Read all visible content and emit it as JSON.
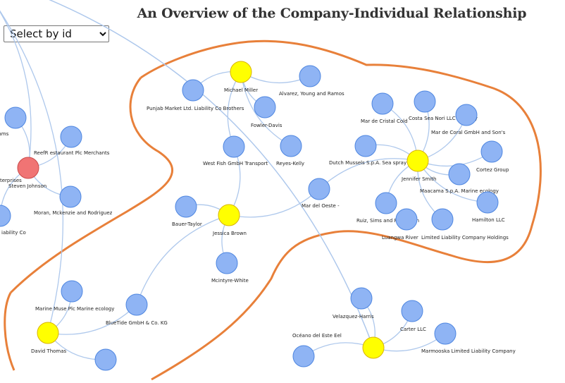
{
  "title": "An Overview of the Company-Individual Relationship",
  "select": {
    "label": "Select by id",
    "options": [
      "Select by id"
    ]
  },
  "colors": {
    "company": "#8fb4f4",
    "company_stroke": "#4e86e0",
    "person": "#ffff00",
    "person_stroke": "#d9b300",
    "highlight": "#f07474",
    "link": "#aec8ec",
    "hull": "#e8803a"
  },
  "nodes": [
    {
      "id": "n1",
      "kind": "company",
      "label": "len-Williams"
    },
    {
      "id": "n2",
      "kind": "company",
      "label": "ReefR estaurant Plc Merchants"
    },
    {
      "id": "n3",
      "kind": "highlight",
      "label": "Steven Johnson"
    },
    {
      "id": "n3b",
      "kind": "label",
      "label": "terprises"
    },
    {
      "id": "n4",
      "kind": "company",
      "label": "Moran, Mckenzie and Rodriguez"
    },
    {
      "id": "n5",
      "kind": "company",
      "label": "iability Co"
    },
    {
      "id": "n6",
      "kind": "person",
      "label": "Michael Miller"
    },
    {
      "id": "n7",
      "kind": "company",
      "label": "Punjab  Market Ltd. Liability Co Brothers"
    },
    {
      "id": "n8",
      "kind": "company",
      "label": "Alvarez, Young and Ramos"
    },
    {
      "id": "n9",
      "kind": "company",
      "label": "Fowler-Davis"
    },
    {
      "id": "n10",
      "kind": "company",
      "label": "West Fish  GmbH Transport"
    },
    {
      "id": "n11",
      "kind": "company",
      "label": "Reyes-Kelly"
    },
    {
      "id": "n12",
      "kind": "company",
      "label": "Mar del Oeste -"
    },
    {
      "id": "n13",
      "kind": "company",
      "label": "Bauer-Taylor"
    },
    {
      "id": "n14",
      "kind": "person",
      "label": "Jessica Brown"
    },
    {
      "id": "n15",
      "kind": "company",
      "label": "Mcintyre-White"
    },
    {
      "id": "n16",
      "kind": "company",
      "label": "Mar de Cristal Cold"
    },
    {
      "id": "n17",
      "kind": "company",
      "label": "Costa Sea  Nori LLC Delivery"
    },
    {
      "id": "n18",
      "kind": "company",
      "label": "Mar de Coral GmbH and Son's"
    },
    {
      "id": "n19",
      "kind": "company",
      "label": "Dutch Mussels S.p.A. Sea spray"
    },
    {
      "id": "n20",
      "kind": "person",
      "label": "Jennifer Smith"
    },
    {
      "id": "n21",
      "kind": "company",
      "label": "Cortez Group"
    },
    {
      "id": "n22",
      "kind": "company",
      "label": "Maacama  S.p.A. Marine ecology"
    },
    {
      "id": "n23",
      "kind": "company",
      "label": "Hamilton LLC"
    },
    {
      "id": "n24",
      "kind": "company",
      "label": "Ruiz, Sims and Robertson"
    },
    {
      "id": "n25",
      "kind": "company",
      "label": "Luangwa River"
    },
    {
      "id": "n26",
      "kind": "company",
      "label": "Limited Liability Company Holdings"
    },
    {
      "id": "n27",
      "kind": "company",
      "label": "Marine Muse Plc Marine ecology"
    },
    {
      "id": "n28",
      "kind": "company",
      "label": "BlueTide GmbH & Co. KG"
    },
    {
      "id": "n29",
      "kind": "person",
      "label": "David Thomas"
    },
    {
      "id": "n30",
      "kind": "company",
      "label": ""
    },
    {
      "id": "n31",
      "kind": "company",
      "label": "Velazquez-Harris"
    },
    {
      "id": "n32",
      "kind": "company",
      "label": "Carter LLC"
    },
    {
      "id": "n33",
      "kind": "company",
      "label": "Océano del Este Eel"
    },
    {
      "id": "n34",
      "kind": "person",
      "label": ""
    },
    {
      "id": "n35",
      "kind": "company",
      "label": "Marmooska Limited Liability Company"
    },
    {
      "id": "n36",
      "kind": "company",
      "label": ""
    },
    {
      "id": "n37",
      "kind": "company",
      "label": ""
    },
    {
      "id": "n38",
      "kind": "company",
      "label": ""
    }
  ],
  "links": [
    [
      "n3",
      "n1"
    ],
    [
      "n3",
      "n2"
    ],
    [
      "n3",
      "n4"
    ],
    [
      "n3",
      "n3b"
    ],
    [
      "n3",
      "n5"
    ],
    [
      "n6",
      "n7"
    ],
    [
      "n6",
      "n8"
    ],
    [
      "n6",
      "n9"
    ],
    [
      "n6",
      "n10"
    ],
    [
      "n6",
      "n11"
    ],
    [
      "n14",
      "n13"
    ],
    [
      "n14",
      "n15"
    ],
    [
      "n14",
      "n10"
    ],
    [
      "n14",
      "n12"
    ],
    [
      "n14",
      "n28"
    ],
    [
      "n20",
      "n16"
    ],
    [
      "n20",
      "n17"
    ],
    [
      "n20",
      "n18"
    ],
    [
      "n20",
      "n19"
    ],
    [
      "n20",
      "n21"
    ],
    [
      "n20",
      "n22"
    ],
    [
      "n20",
      "n23"
    ],
    [
      "n20",
      "n24"
    ],
    [
      "n20",
      "n26"
    ],
    [
      "n20",
      "n12"
    ],
    [
      "n29",
      "n27"
    ],
    [
      "n29",
      "n28"
    ],
    [
      "n29",
      "n30"
    ],
    [
      "n29",
      "n37"
    ],
    [
      "n34",
      "n31"
    ],
    [
      "n34",
      "n32"
    ],
    [
      "n34",
      "n33"
    ],
    [
      "n34",
      "n35"
    ],
    [
      "n34",
      "n36"
    ],
    [
      "n34",
      "n38"
    ]
  ]
}
